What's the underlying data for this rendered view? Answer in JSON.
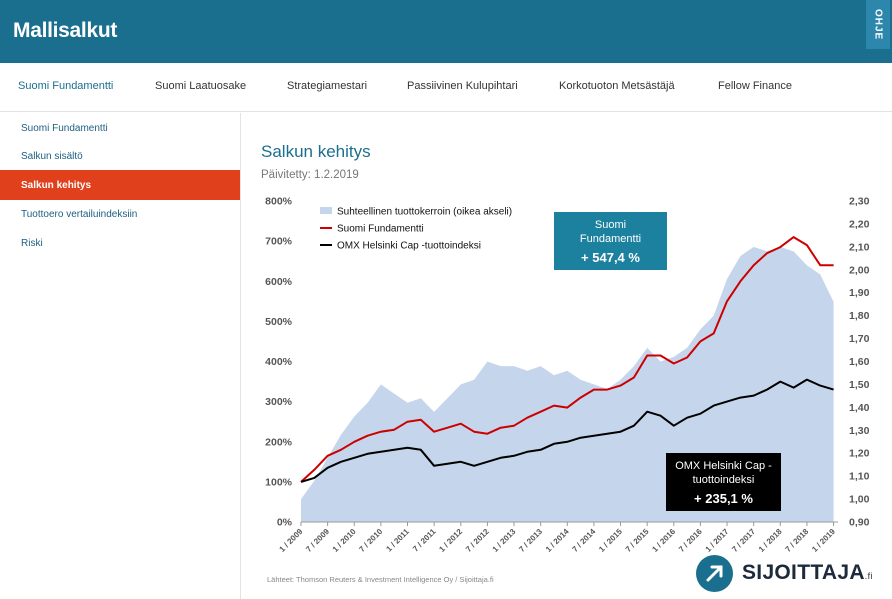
{
  "app": {
    "title": "Mallisalkut",
    "help_label": "OHJE"
  },
  "tabs": [
    {
      "label": "Suomi Fundamentti",
      "active": true
    },
    {
      "label": "Suomi Laatuosake",
      "active": false
    },
    {
      "label": "Strategiamestari",
      "active": false
    },
    {
      "label": "Passiivinen Kulupihtari",
      "active": false
    },
    {
      "label": "Korkotuoton Metsästäjä",
      "active": false
    },
    {
      "label": "Fellow Finance",
      "active": false
    }
  ],
  "sidebar": {
    "items": [
      {
        "label": "Suomi Fundamentti",
        "active": false
      },
      {
        "label": "Salkun sisältö",
        "active": false
      },
      {
        "label": "Salkun kehitys",
        "active": true
      },
      {
        "label": "Tuottoero vertailuindeksiin",
        "active": false
      },
      {
        "label": "Riski",
        "active": false
      }
    ]
  },
  "main": {
    "title": "Salkun kehitys",
    "updated": "Päivitetty: 1.2.2019"
  },
  "colors": {
    "brand": "#1b6f8e",
    "accent": "#e1401c",
    "area": "#c5d6ec",
    "portfolio": "#cc0000",
    "index": "#000000"
  },
  "chart_data": {
    "type": "line",
    "x_ticks": [
      "1 / 2009",
      "7 / 2009",
      "1 / 2010",
      "7 / 2010",
      "1 / 2011",
      "7 / 2011",
      "1 / 2012",
      "7 / 2012",
      "1 / 2013",
      "7 / 2013",
      "1 / 2014",
      "7 / 2014",
      "1 / 2015",
      "7 / 2015",
      "1 / 2016",
      "7 / 2016",
      "1 / 2017",
      "7 / 2017",
      "1 / 2018",
      "7 / 2018",
      "1 / 2019"
    ],
    "y_left_ticks": [
      "800%",
      "700%",
      "600%",
      "500%",
      "400%",
      "300%",
      "200%",
      "100%",
      "0%"
    ],
    "y_left_range": [
      0,
      800
    ],
    "y_right_ticks": [
      "2,30",
      "2,20",
      "2,10",
      "2,00",
      "1,90",
      "1,80",
      "1,70",
      "1,60",
      "1,50",
      "1,40",
      "1,30",
      "1,20",
      "1,10",
      "1,00",
      "0,90"
    ],
    "y_right_range": [
      0.9,
      2.3
    ],
    "legend": [
      {
        "label": "Suhteellinen tuottokerroin (oikea akseli)",
        "kind": "area"
      },
      {
        "label": "Suomi Fundamentti",
        "kind": "line"
      },
      {
        "label": "OMX Helsinki Cap -tuottoindeksi",
        "kind": "line"
      }
    ],
    "grid": false,
    "x": [
      "2009-01",
      "2009-04",
      "2009-07",
      "2009-10",
      "2010-01",
      "2010-04",
      "2010-07",
      "2010-10",
      "2011-01",
      "2011-04",
      "2011-07",
      "2011-10",
      "2012-01",
      "2012-04",
      "2012-07",
      "2012-10",
      "2013-01",
      "2013-04",
      "2013-07",
      "2013-10",
      "2014-01",
      "2014-04",
      "2014-07",
      "2014-10",
      "2015-01",
      "2015-04",
      "2015-07",
      "2015-10",
      "2016-01",
      "2016-04",
      "2016-07",
      "2016-10",
      "2017-01",
      "2017-04",
      "2017-07",
      "2017-10",
      "2018-01",
      "2018-04",
      "2018-07",
      "2018-10",
      "2019-01"
    ],
    "series": [
      {
        "name": "Suhteellinen tuottokerroin (oikea akseli)",
        "axis": "right",
        "values": [
          1.0,
          1.08,
          1.18,
          1.28,
          1.36,
          1.42,
          1.5,
          1.46,
          1.42,
          1.44,
          1.38,
          1.44,
          1.5,
          1.52,
          1.6,
          1.58,
          1.58,
          1.56,
          1.58,
          1.54,
          1.56,
          1.52,
          1.5,
          1.48,
          1.52,
          1.58,
          1.66,
          1.6,
          1.62,
          1.66,
          1.74,
          1.8,
          1.96,
          2.06,
          2.1,
          2.08,
          2.1,
          2.08,
          2.02,
          1.98,
          1.86
        ]
      },
      {
        "name": "Suomi Fundamentti",
        "axis": "left",
        "values": [
          100,
          130,
          165,
          180,
          200,
          215,
          225,
          230,
          250,
          255,
          225,
          235,
          245,
          225,
          220,
          235,
          240,
          260,
          275,
          290,
          285,
          310,
          330,
          330,
          340,
          360,
          415,
          415,
          395,
          410,
          450,
          470,
          550,
          600,
          640,
          670,
          685,
          710,
          690,
          640,
          640
        ]
      },
      {
        "name": "OMX Helsinki Cap -tuottoindeksi",
        "axis": "left",
        "values": [
          100,
          110,
          135,
          150,
          160,
          170,
          175,
          180,
          185,
          180,
          140,
          145,
          150,
          140,
          150,
          160,
          165,
          175,
          180,
          195,
          200,
          210,
          215,
          220,
          225,
          240,
          275,
          265,
          240,
          260,
          270,
          290,
          300,
          310,
          315,
          330,
          350,
          335,
          355,
          340,
          330
        ]
      }
    ],
    "annotations": [
      {
        "line1": "Suomi",
        "line2": "Fundamentti",
        "value": "+ 547,4 %"
      },
      {
        "line1": "OMX Helsinki Cap -",
        "line2": "tuottoindeksi",
        "value": "+ 235,1 %"
      }
    ],
    "source_note": "Lähteet: Thomson Reuters & Investment Intelligence Oy / Sijoittaja.fi"
  },
  "logo": {
    "text": "SIJOITTAJA",
    "suffix": ".fi",
    "icon": "arrow-up-right-icon"
  }
}
